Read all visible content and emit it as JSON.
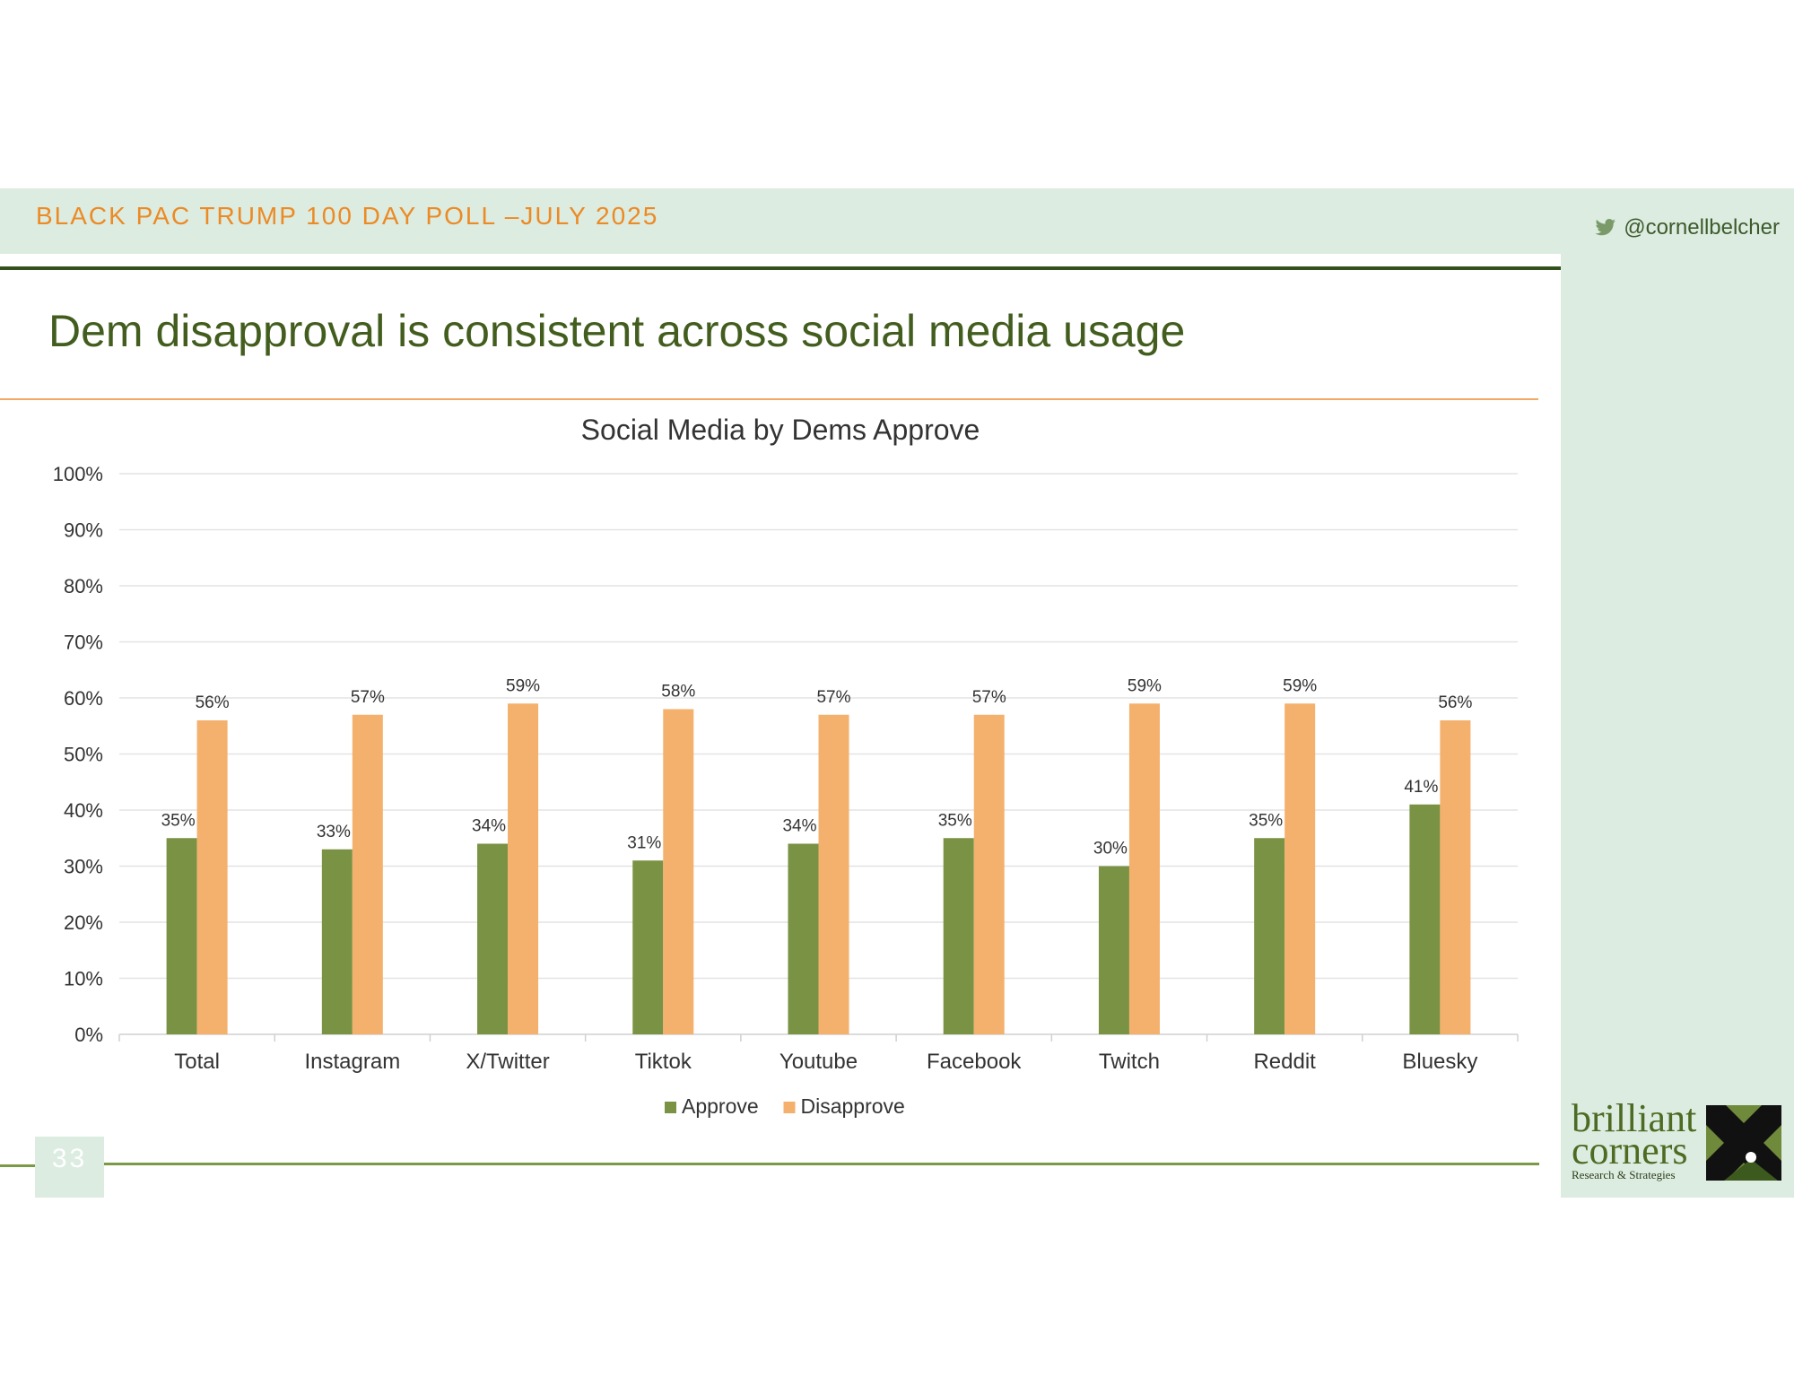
{
  "header": {
    "poll_title": "BLACK PAC TRUMP 100 DAY POLL –JULY 2025",
    "twitter_handle": "@cornellbelcher"
  },
  "slide": {
    "title": "Dem disapproval is consistent across social media usage",
    "page_number": "33"
  },
  "logo": {
    "line1": "brilliant",
    "line2": "corners",
    "line3": "Research & Strategies"
  },
  "colors": {
    "approve": "#7a9243",
    "disapprove": "#f4b06d",
    "accent_orange": "#ec8a24",
    "dark_green": "#33511a",
    "light_green": "#dcece1"
  },
  "chart_data": {
    "type": "bar",
    "title": "Social Media by Dems Approve",
    "categories": [
      "Total",
      "Instagram",
      "X/Twitter",
      "Tiktok",
      "Youtube",
      "Facebook",
      "Twitch",
      "Reddit",
      "Bluesky"
    ],
    "series": [
      {
        "name": "Approve",
        "values": [
          35,
          33,
          34,
          31,
          34,
          35,
          30,
          35,
          41
        ],
        "labels": [
          "35%",
          "33%",
          "34%",
          "31%",
          "34%",
          "35%",
          "30%",
          "35%",
          "41%"
        ],
        "color": "#7a9243"
      },
      {
        "name": "Disapprove",
        "values": [
          56,
          57,
          59,
          58,
          57,
          57,
          59,
          59,
          56
        ],
        "labels": [
          "56%",
          "57%",
          "59%",
          "58%",
          "57%",
          "57%",
          "59%",
          "59%",
          "56%"
        ],
        "color": "#f4b06d"
      }
    ],
    "ylim": [
      0,
      100
    ],
    "yticks": [
      "0%",
      "10%",
      "20%",
      "30%",
      "40%",
      "50%",
      "60%",
      "70%",
      "80%",
      "90%",
      "100%"
    ],
    "grid": true,
    "legend": "bottom"
  }
}
